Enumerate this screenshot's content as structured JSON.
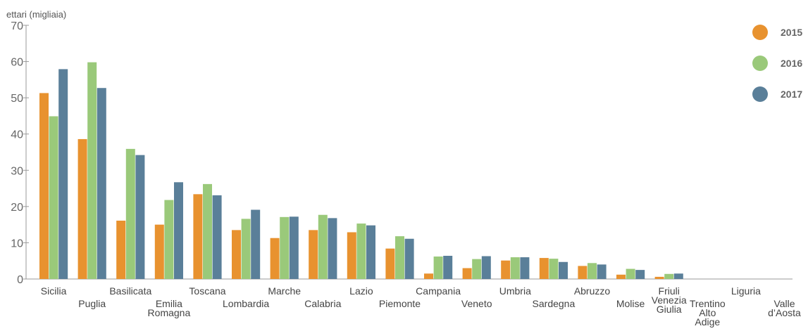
{
  "chart_data": {
    "type": "bar",
    "ylabel": "ettari (migliaia)",
    "ylim": [
      0,
      70
    ],
    "yticks": [
      0,
      10,
      20,
      30,
      40,
      50,
      60,
      70
    ],
    "grid": false,
    "legend_position": "right",
    "categories": [
      [
        "Sicilia"
      ],
      [
        "Puglia"
      ],
      [
        "Basilicata"
      ],
      [
        "Emilia",
        "Romagna"
      ],
      [
        "Toscana"
      ],
      [
        "Lombardia"
      ],
      [
        "Marche"
      ],
      [
        "Calabria"
      ],
      [
        "Lazio"
      ],
      [
        "Piemonte"
      ],
      [
        "Campania"
      ],
      [
        "Veneto"
      ],
      [
        "Umbria"
      ],
      [
        "Sardegna"
      ],
      [
        "Abruzzo"
      ],
      [
        "Molise"
      ],
      [
        "Friuli",
        "Venezia",
        "Giulia"
      ],
      [
        "Trentino",
        "Alto",
        "Adige"
      ],
      [
        "Liguria"
      ],
      [
        "Valle",
        "d’Aosta"
      ]
    ],
    "series": [
      {
        "name": "2015",
        "color": "#e8922f",
        "values": [
          51.3,
          38.6,
          16.1,
          15.0,
          23.4,
          13.5,
          11.3,
          13.5,
          12.9,
          8.4,
          1.5,
          3.0,
          5.1,
          5.8,
          3.6,
          1.2,
          0.6,
          0.0,
          0.0,
          0.0
        ]
      },
      {
        "name": "2016",
        "color": "#9ac97a",
        "values": [
          44.9,
          59.8,
          35.9,
          21.8,
          26.2,
          16.6,
          17.1,
          17.7,
          15.3,
          11.8,
          6.2,
          5.5,
          6.0,
          5.6,
          4.4,
          2.8,
          1.4,
          0.0,
          0.0,
          0.0
        ]
      },
      {
        "name": "2017",
        "color": "#5a7f99",
        "values": [
          57.9,
          52.7,
          34.2,
          26.7,
          23.1,
          19.1,
          17.2,
          16.8,
          14.8,
          11.1,
          6.4,
          6.3,
          6.0,
          4.7,
          4.0,
          2.5,
          1.5,
          0.0,
          0.0,
          0.0
        ]
      }
    ]
  }
}
